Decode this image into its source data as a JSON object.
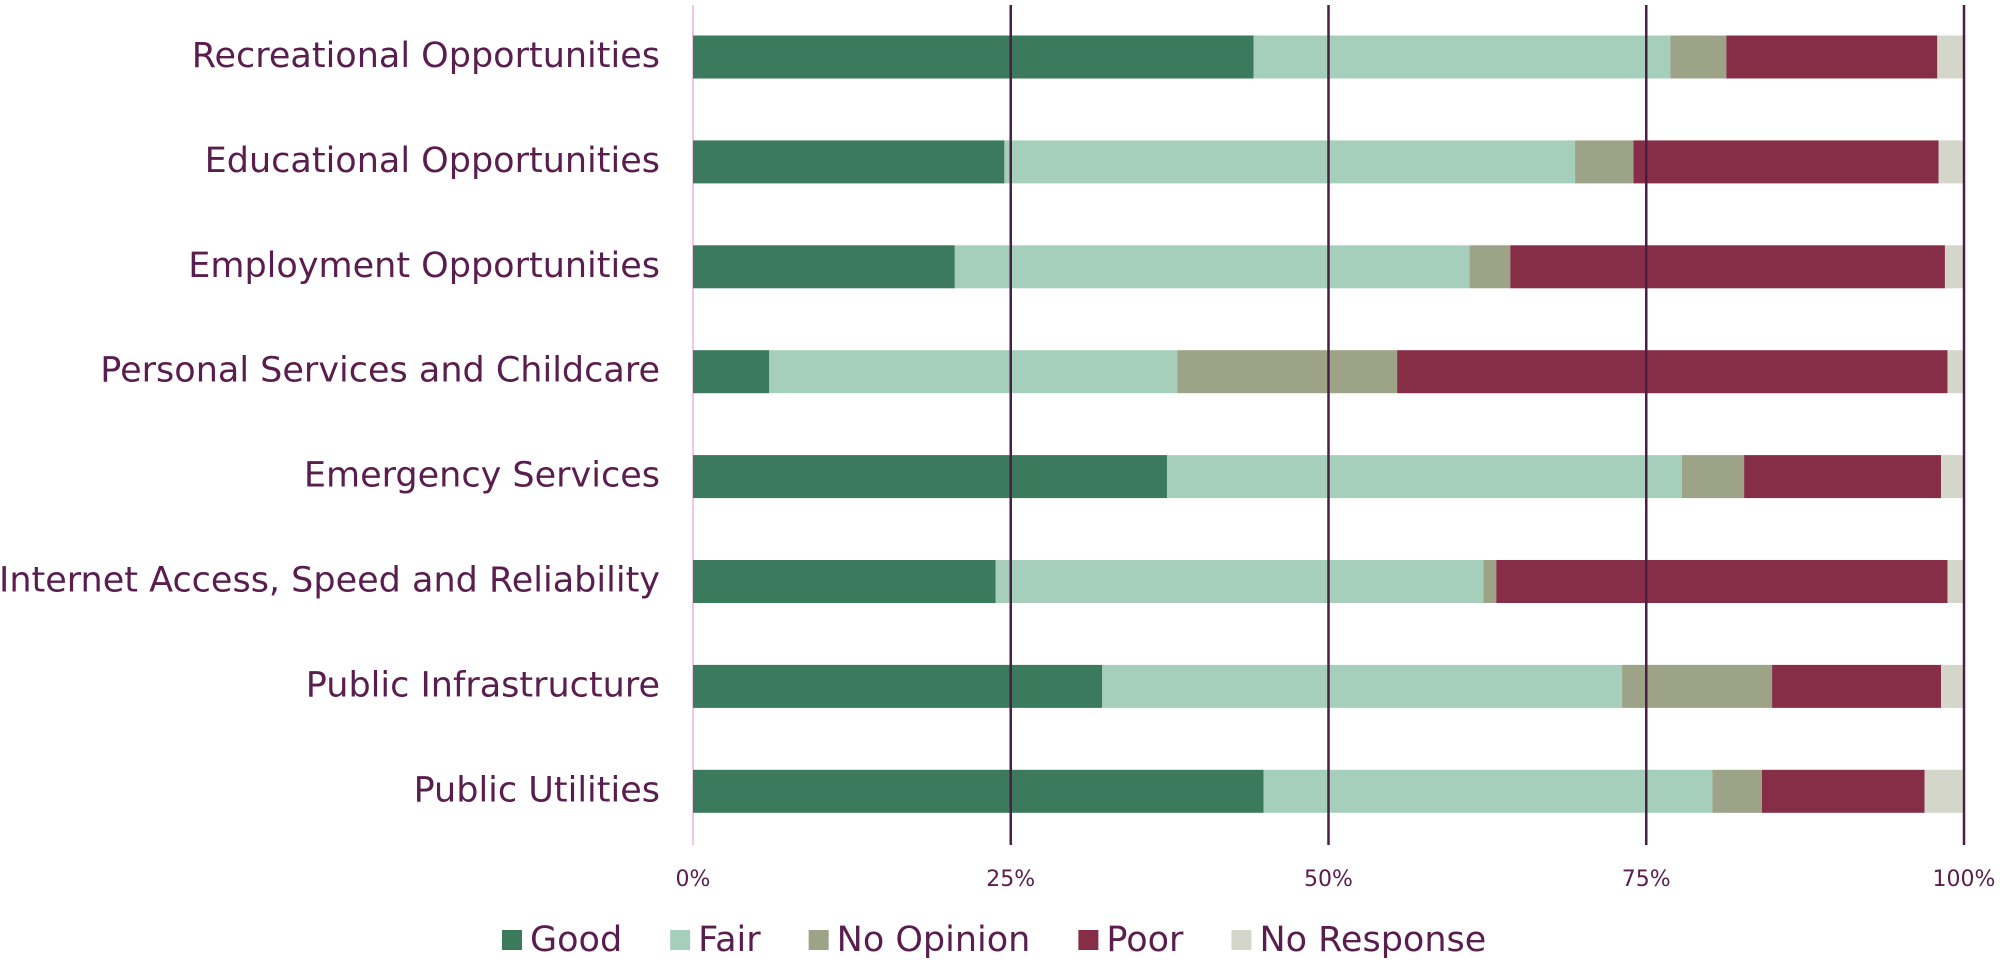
{
  "chart_data": {
    "type": "bar",
    "orientation": "horizontal",
    "stacked": true,
    "categories": [
      "Recreational Opportunities",
      "Educational Opportunities",
      "Employment Opportunities",
      "Personal Services and Childcare",
      "Emergency Services",
      "Internet Access, Speed and Reliability",
      "Public Infrastructure",
      "Public Utilities"
    ],
    "series": [
      {
        "name": "Good",
        "color": "#3b7a5c",
        "values": [
          44.1,
          24.5,
          20.6,
          6.0,
          37.3,
          23.8,
          32.2,
          44.9
        ]
      },
      {
        "name": "Fair",
        "color": "#a6cfbb",
        "values": [
          32.8,
          44.9,
          40.5,
          32.1,
          40.5,
          38.4,
          40.9,
          35.3
        ]
      },
      {
        "name": "No Opinion",
        "color": "#9da387",
        "values": [
          4.4,
          4.6,
          3.2,
          17.3,
          4.9,
          1.0,
          11.8,
          3.9
        ]
      },
      {
        "name": "Poor",
        "color": "#862d48",
        "values": [
          16.6,
          24.0,
          34.2,
          43.3,
          15.5,
          35.5,
          13.3,
          12.8
        ]
      },
      {
        "name": "No Response",
        "color": "#d4d6ca",
        "values": [
          2.1,
          2.0,
          1.5,
          1.3,
          1.8,
          1.3,
          1.8,
          3.0
        ]
      }
    ],
    "xlim": [
      0,
      100
    ],
    "xticks": [
      {
        "value": 0,
        "label": "0%"
      },
      {
        "value": 25,
        "label": "25%"
      },
      {
        "value": 50,
        "label": "50%"
      },
      {
        "value": 75,
        "label": "75%"
      },
      {
        "value": 100,
        "label": "100%"
      }
    ],
    "grid": true,
    "legend": "bottom"
  }
}
